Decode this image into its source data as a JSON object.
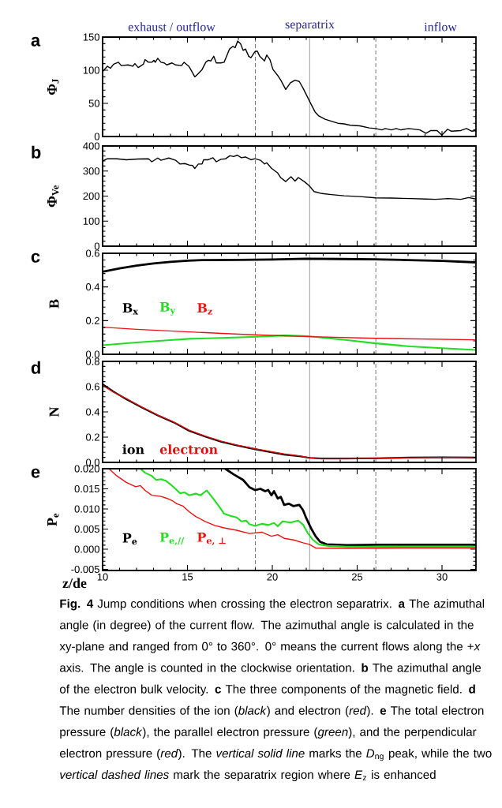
{
  "chart_data": [
    {
      "type": "line",
      "title": "a",
      "ylabel": "Φ$_{J}$",
      "xlim": [
        10,
        32
      ],
      "xticks": [
        10,
        15,
        20,
        25,
        30
      ],
      "ylim": [
        0,
        150
      ],
      "yticks": [
        0,
        50,
        100,
        150
      ],
      "tick_labels": "y",
      "annotations": [
        "exhaust / outflow",
        "separatrix",
        "inflow"
      ],
      "ref_lines": [
        {
          "axis": "x",
          "value": 19,
          "color": "#555555",
          "line_style": "dashed"
        },
        {
          "axis": "x",
          "value": 22.2,
          "color": "#888888",
          "line_style": "solid"
        },
        {
          "axis": "x",
          "value": 26.1,
          "color": "#555555",
          "line_style": "dashed"
        }
      ],
      "series": [
        {
          "color": "#000000",
          "x": [
            10,
            10.28,
            10.46,
            10.65,
            10.93,
            11.1,
            11.5,
            11.77,
            11.9,
            12.1,
            12.4,
            12.5,
            12.7,
            12.9,
            13.03,
            13.1,
            13.25,
            13.44,
            13.63,
            13.78,
            14.09,
            14.3,
            14.65,
            14.8,
            15.08,
            15.26,
            15.43,
            15.64,
            15.86,
            16.08,
            16.23,
            16.38,
            16.55,
            16.7,
            16.97,
            17.16,
            17.48,
            17.68,
            17.81,
            17.96,
            18.13,
            18.28,
            18.42,
            18.61,
            18.74,
            18.98,
            19.11,
            19.26,
            19.54,
            19.67,
            19.86,
            20.04,
            20.32,
            20.5,
            20.79,
            21.07,
            21.34,
            21.59,
            21.81,
            22.18,
            22.52,
            22.74,
            23.11,
            23.48,
            23.86,
            24.23,
            24.6,
            25.16,
            25.71,
            26.09,
            26.46,
            26.65,
            27.02,
            27.3,
            27.57,
            28.04,
            28.69,
            29.06,
            29.34,
            29.71,
            29.99,
            30.33,
            30.55,
            31.1,
            31.44,
            31.76,
            32
          ],
          "values": [
            98,
            106,
            103,
            109,
            112,
            107,
            108,
            106,
            110,
            104,
            109,
            116,
            112,
            112,
            115,
            112,
            118,
            112,
            111,
            108,
            111,
            108,
            107,
            112,
            106,
            98,
            90,
            95,
            101,
            112,
            115,
            114,
            121,
            111,
            111,
            112,
            132,
            136,
            134,
            144,
            140,
            130,
            132,
            121,
            119,
            128,
            129,
            121,
            114,
            123,
            116,
            101,
            92,
            85,
            71,
            81,
            85,
            83,
            73,
            54,
            37,
            31,
            26,
            23,
            20,
            19,
            17,
            16,
            13,
            12,
            10,
            12,
            10,
            12,
            10,
            12,
            10,
            5,
            9,
            9,
            2,
            11,
            8,
            9,
            12,
            8,
            9
          ]
        }
      ]
    },
    {
      "type": "line",
      "title": "b",
      "ylabel": "Φ$_{Ve}$",
      "xlim": [
        10,
        32
      ],
      "xticks": [
        10,
        15,
        20,
        25,
        30
      ],
      "ylim": [
        0,
        400
      ],
      "yticks": [
        0,
        100,
        200,
        300,
        400
      ],
      "tick_labels": "y",
      "ref_lines": [
        {
          "axis": "x",
          "value": 19,
          "color": "#555555",
          "line_style": "dashed"
        },
        {
          "axis": "x",
          "value": 22.2,
          "color": "#888888",
          "line_style": "solid"
        },
        {
          "axis": "x",
          "value": 26.1,
          "color": "#555555",
          "line_style": "dashed"
        }
      ],
      "series": [
        {
          "color": "#000000",
          "x": [
            10,
            10.28,
            10.84,
            11.4,
            12.1,
            12.7,
            12.9,
            13.25,
            13.44,
            13.9,
            14.3,
            14.56,
            14.84,
            15.1,
            15.3,
            15.43,
            15.64,
            15.86,
            15.95,
            16.23,
            16.5,
            16.7,
            16.97,
            17.25,
            17.5,
            17.72,
            17.94,
            18.18,
            18.42,
            18.74,
            18.98,
            19.3,
            19.54,
            19.67,
            19.95,
            20.32,
            20.5,
            20.79,
            21.1,
            21.34,
            21.53,
            21.9,
            22.18,
            22.46,
            22.93,
            23.48,
            24.23,
            25.16,
            26.09,
            27.02,
            28.13,
            29.06,
            29.62,
            30.36,
            31.1,
            31.57,
            32
          ],
          "values": [
            340,
            349,
            349,
            345,
            348,
            349,
            337,
            352,
            343,
            352,
            343,
            328,
            330,
            324,
            322,
            310,
            328,
            328,
            345,
            345,
            353,
            337,
            347,
            349,
            361,
            358,
            363,
            353,
            356,
            345,
            349,
            343,
            328,
            333,
            311,
            292,
            273,
            258,
            277,
            260,
            274,
            257,
            241,
            218,
            210,
            206,
            201,
            198,
            193,
            192,
            190,
            188,
            187,
            190,
            187,
            194,
            188
          ]
        }
      ]
    },
    {
      "type": "line",
      "title": "c",
      "ylabel": "B",
      "xlim": [
        10,
        32
      ],
      "xticks": [
        10,
        15,
        20,
        25,
        30
      ],
      "ylim": [
        0,
        0.6
      ],
      "yticks": [
        {
          "value": 0,
          "label": "0.0"
        },
        {
          "value": 0.2,
          "label": "0.2"
        },
        {
          "value": 0.4,
          "label": "0.4"
        },
        {
          "value": 0.6,
          "label": "0.6"
        }
      ],
      "tick_labels": "y",
      "ref_lines": [
        {
          "axis": "x",
          "value": 19,
          "color": "#555555",
          "line_style": "dashed"
        },
        {
          "axis": "x",
          "value": 22.2,
          "color": "#888888",
          "line_style": "solid"
        },
        {
          "axis": "x",
          "value": 26.1,
          "color": "#555555",
          "line_style": "dashed"
        }
      ],
      "series": [
        {
          "name": "B$_{x}$",
          "color": "#000000",
          "x": [
            10,
            11,
            12,
            13,
            14,
            15,
            16,
            18,
            20,
            22,
            24,
            26,
            28,
            30,
            32
          ],
          "values": [
            0.49,
            0.51,
            0.527,
            0.54,
            0.549,
            0.556,
            0.56,
            0.561,
            0.563,
            0.568,
            0.566,
            0.564,
            0.56,
            0.555,
            0.546
          ]
        },
        {
          "name": "B$_{y}$",
          "color": "#22dd22",
          "x": [
            10,
            12,
            14,
            15.1,
            17,
            18.8,
            20.7,
            22.2,
            24.4,
            26.1,
            28.1,
            30,
            32
          ],
          "values": [
            0.054,
            0.07,
            0.084,
            0.092,
            0.097,
            0.103,
            0.112,
            0.107,
            0.084,
            0.065,
            0.047,
            0.036,
            0.026
          ]
        },
        {
          "name": "B$_{z}$",
          "color": "#ee1111",
          "x": [
            10,
            12,
            15.1,
            18.8,
            22.2,
            26.1,
            32
          ],
          "values": [
            0.161,
            0.148,
            0.133,
            0.116,
            0.105,
            0.095,
            0.086
          ]
        }
      ]
    },
    {
      "type": "line",
      "title": "d",
      "ylabel": "N",
      "xlim": [
        10,
        32
      ],
      "xticks": [
        10,
        15,
        20,
        25,
        30
      ],
      "ylim": [
        0,
        0.8
      ],
      "yticks": [
        {
          "value": 0,
          "label": "0.0"
        },
        {
          "value": 0.2,
          "label": "0.2"
        },
        {
          "value": 0.4,
          "label": "0.4"
        },
        {
          "value": 0.6,
          "label": "0.6"
        },
        {
          "value": 0.8,
          "label": "0.8"
        }
      ],
      "tick_labels": "y",
      "ref_lines": [
        {
          "axis": "x",
          "value": 19,
          "color": "#555555",
          "line_style": "dashed"
        },
        {
          "axis": "x",
          "value": 22.2,
          "color": "#888888",
          "line_style": "solid"
        },
        {
          "axis": "x",
          "value": 26.1,
          "color": "#555555",
          "line_style": "dashed"
        }
      ],
      "series": [
        {
          "name": "ion",
          "color": "#000000",
          "x": [
            10,
            10.65,
            11.4,
            12.3,
            13.25,
            14.2,
            15.1,
            16,
            17,
            17.9,
            19,
            19.76,
            20.7,
            21.6,
            22.2,
            22.9,
            24.4,
            26.1,
            28.1,
            30,
            32
          ],
          "values": [
            0.62,
            0.56,
            0.5,
            0.435,
            0.372,
            0.316,
            0.25,
            0.206,
            0.163,
            0.135,
            0.104,
            0.084,
            0.061,
            0.048,
            0.036,
            0.031,
            0.031,
            0.033,
            0.038,
            0.041,
            0.038
          ]
        },
        {
          "name": "electron",
          "color": "#dd1111",
          "x": [
            10,
            10.65,
            11.4,
            12.3,
            13.25,
            14.2,
            15.1,
            16,
            17,
            17.9,
            19,
            19.76,
            20.7,
            21.6,
            22.2,
            22.9,
            24.4,
            26.1,
            28.1,
            30,
            32
          ],
          "values": [
            0.61,
            0.555,
            0.505,
            0.44,
            0.375,
            0.32,
            0.255,
            0.21,
            0.168,
            0.138,
            0.108,
            0.09,
            0.067,
            0.052,
            0.037,
            0.027,
            0.028,
            0.032,
            0.037,
            0.04,
            0.038
          ]
        }
      ]
    },
    {
      "type": "line",
      "title": "e",
      "ylabel": "P$_{e}$",
      "xlabel": "z/de",
      "xlim": [
        10,
        32
      ],
      "xticks": [
        10,
        15,
        20,
        25,
        30
      ],
      "ylim": [
        -0.0053,
        0.02
      ],
      "yticks": [
        {
          "value": -0.005,
          "label": "-0.005"
        },
        {
          "value": 0,
          "label": "0.000"
        },
        {
          "value": 0.005,
          "label": "0.005"
        },
        {
          "value": 0.01,
          "label": "0.010"
        },
        {
          "value": 0.015,
          "label": "0.015"
        },
        {
          "value": 0.02,
          "label": "0.020"
        }
      ],
      "annotations": [
        "**Fig. 4** Jump conditions when crossing the electron separatrix. **a** The azimuthal angle (in degree) of the current flow. The azimuthal angle is calculated in the xy-plane and ranged from 0° to 360°. 0° means the current flows along the +*x* axis. The angle is counted in the clockwise orientation. **b** The azimuthal angle of the electron bulk velocity. **c** The three components of the magnetic field. **d** The number densities of the ion (*black*) and electron (*red*). **e** The total electron pressure (*black*), the parallel electron pressure (*green*), and the perpendicular electron pressure (*red*). The *vertical solid line* marks the *D*$_{ng}$ peak, while the two *vertical dashed lines* mark the separatrix region where *E*$_{z}$ is enhanced"
      ],
      "ref_lines": [
        {
          "axis": "x",
          "value": 19,
          "color": "#555555",
          "line_style": "dashed"
        },
        {
          "axis": "x",
          "value": 22.2,
          "color": "#888888",
          "line_style": "solid"
        },
        {
          "axis": "x",
          "value": 26.1,
          "color": "#555555",
          "line_style": "dashed"
        }
      ],
      "series": [
        {
          "name": "P$_{e}$",
          "color": "#000000",
          "x": [
            17.22,
            17.72,
            18.28,
            18.65,
            18.98,
            19.3,
            19.58,
            19.76,
            19.95,
            20.1,
            20.32,
            20.5,
            20.7,
            20.97,
            21.25,
            21.59,
            21.81,
            22,
            22.27,
            22.55,
            22.83,
            23.2,
            24.4,
            26.3,
            28.1,
            30,
            32
          ],
          "values": [
            0.02,
            0.0186,
            0.0172,
            0.0154,
            0.0147,
            0.015,
            0.0144,
            0.0147,
            0.0134,
            0.0144,
            0.0126,
            0.013,
            0.011,
            0.0113,
            0.0107,
            0.011,
            0.0097,
            0.0077,
            0.0053,
            0.0032,
            0.0018,
            0.0012,
            0.001,
            0.0011,
            0.0011,
            0.0011,
            0.0011
          ]
        },
        {
          "name": "P$_{e,//}$",
          "color": "#22dd22",
          "x": [
            12.23,
            12.5,
            12.9,
            13.16,
            13.44,
            13.72,
            14.09,
            14.56,
            14.84,
            15.1,
            15.49,
            15.77,
            16.14,
            16.51,
            16.88,
            17.16,
            17.53,
            17.9,
            18.18,
            18.46,
            18.65,
            18.98,
            19.4,
            19.76,
            20.1,
            20.32,
            20.6,
            21.07,
            21.53,
            21.81,
            22.09,
            22.37,
            22.74,
            23.3,
            24.4,
            28.1,
            32
          ],
          "values": [
            0.02,
            0.019,
            0.0182,
            0.0172,
            0.0174,
            0.017,
            0.0158,
            0.0139,
            0.0141,
            0.0134,
            0.0138,
            0.0134,
            0.0146,
            0.0126,
            0.0105,
            0.0088,
            0.0083,
            0.0079,
            0.0069,
            0.0071,
            0.0062,
            0.0058,
            0.0063,
            0.006,
            0.0065,
            0.0057,
            0.0069,
            0.0066,
            0.0071,
            0.0061,
            0.004,
            0.0024,
            0.0012,
            0.0008,
            0.0006,
            0.0006,
            0.0006
          ]
        },
        {
          "name": "P$_{e, ⊥}$",
          "color": "#ee1111",
          "x": [
            10.37,
            10.84,
            11.4,
            11.95,
            12.23,
            12.5,
            12.9,
            13.44,
            13.81,
            14.09,
            14.37,
            14.74,
            15.1,
            15.49,
            16.04,
            16.6,
            17.16,
            17.9,
            18.65,
            19.4,
            19.95,
            20.32,
            20.7,
            21.25,
            21.81,
            22.18,
            22.55,
            24.4,
            28.1,
            32
          ],
          "values": [
            0.02,
            0.0182,
            0.0166,
            0.0155,
            0.0158,
            0.0146,
            0.0134,
            0.0131,
            0.0126,
            0.0121,
            0.0113,
            0.0107,
            0.0093,
            0.0081,
            0.0069,
            0.0059,
            0.0053,
            0.0047,
            0.0039,
            0.0042,
            0.0032,
            0.0036,
            0.0027,
            0.0023,
            0.0016,
            0.0012,
            0.0003,
            0.0002,
            0.0003,
            0.0003
          ]
        }
      ]
    }
  ]
}
